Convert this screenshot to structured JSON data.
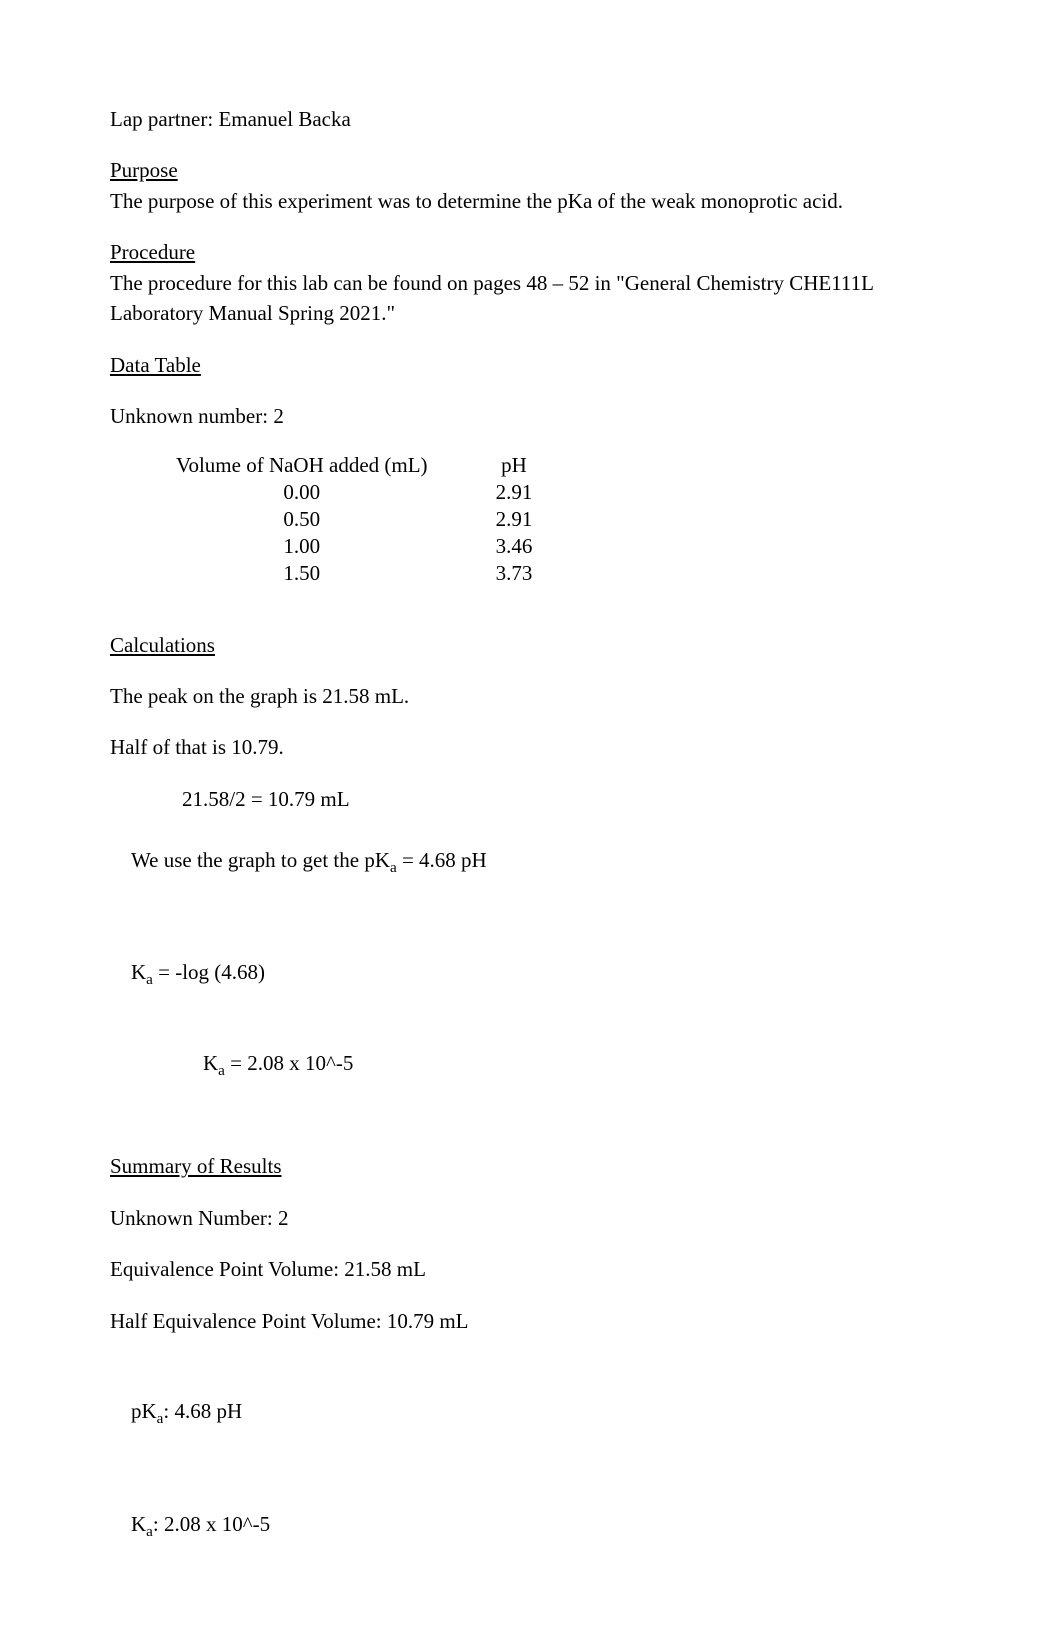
{
  "partner_line": "Lap partner: Emanuel Backa",
  "purpose": {
    "label": "Purpose",
    "text": "The purpose of this experiment was to determine the pKa of the weak monoprotic acid."
  },
  "procedure": {
    "label": "Procedure",
    "text": "The procedure for this lab can be found on pages 48 – 52 in \"General Chemistry CHE111L Laboratory Manual Spring 2021.\""
  },
  "data_table_section": {
    "label": "Data Table",
    "unknown_line": "Unknown number: 2",
    "columns": [
      "Volume of NaOH added (mL)",
      "pH"
    ],
    "rows": [
      [
        "0.00",
        "2.91"
      ],
      [
        "0.50",
        "2.91"
      ],
      [
        "1.00",
        "3.46"
      ],
      [
        "1.50",
        "3.73"
      ]
    ]
  },
  "calculations": {
    "label": "Calculations",
    "peak_line": "The peak on the graph is 21.58 mL.",
    "half_line": "Half of that is 10.79.",
    "half_calc": "21.58/2 = 10.79 mL",
    "use_graph_prefix": "We use the graph to get the p",
    "use_graph_K": "K",
    "use_graph_a": "a",
    "use_graph_suffix": " = 4.68 pH",
    "ka_line1_K": "K",
    "ka_line1_a": "a",
    "ka_line1_rest": " = -log (4.68)",
    "ka_line2_K": "K",
    "ka_line2_a": "a",
    "ka_line2_rest": " = 2.08 x 10^-5"
  },
  "summary": {
    "label": "Summary of Results",
    "unknown": "Unknown Number: 2",
    "eq_point": "Equivalence Point Volume: 21.58 mL",
    "half_eq_point": "Half Equivalence Point Volume: 10.79 mL",
    "pka_prefix": "p",
    "pka_K": "K",
    "pka_a": "a",
    "pka_suffix": ": 4.68 pH",
    "ka_K": "K",
    "ka_a": "a",
    "ka_suffix": ": 2.08 x 10^-5"
  }
}
